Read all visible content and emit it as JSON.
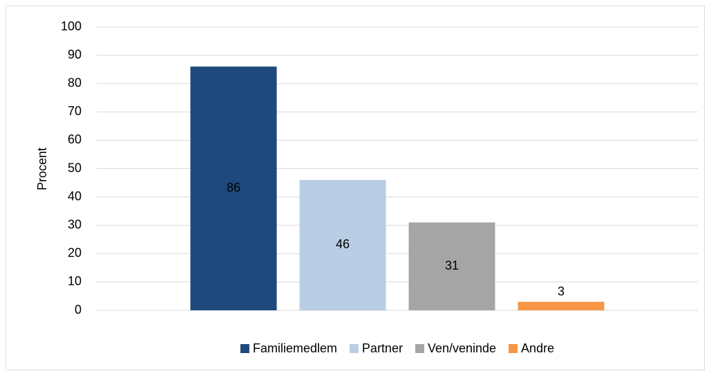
{
  "chart_data": {
    "type": "bar",
    "y_label": "Procent",
    "categories": [
      null
    ],
    "series": [
      {
        "name": "Familiemedlem",
        "color": "#1f497d",
        "values": [
          86
        ]
      },
      {
        "name": "Partner",
        "color": "#b9cde5",
        "values": [
          46
        ]
      },
      {
        "name": "Ven/veninde",
        "color": "#a5a5a5",
        "values": [
          31
        ]
      },
      {
        "name": "Andre",
        "color": "#f79646",
        "values": [
          3
        ]
      }
    ],
    "ylim": [
      0,
      100
    ],
    "yticks": [
      0,
      10,
      20,
      30,
      40,
      50,
      60,
      70,
      80,
      90,
      100
    ],
    "grid": true,
    "legend": "bottom"
  }
}
